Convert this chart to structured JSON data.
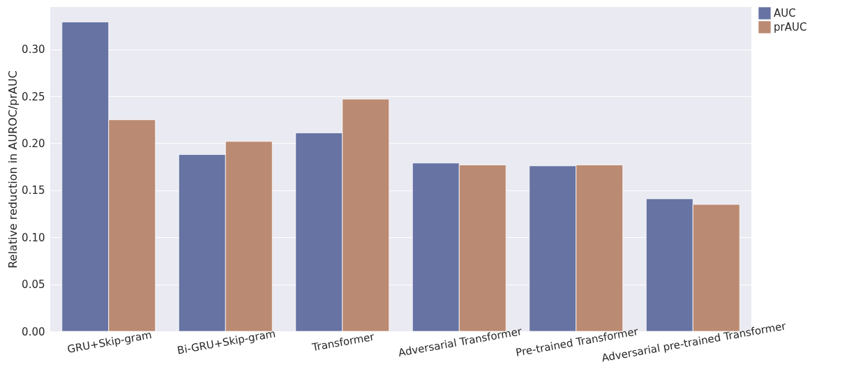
{
  "chart_data": {
    "type": "bar",
    "ylabel": "Relative reduction in AUROC/prAUC",
    "categories": [
      "GRU+Skip-gram",
      "Bi-GRU+Skip-gram",
      "Transformer",
      "Adversarial Transformer",
      "Pre-trained Transformer",
      "Adversarial pre-trained Transformer"
    ],
    "series": [
      {
        "name": "AUC",
        "color": "#6673a3",
        "values": [
          0.329,
          0.188,
          0.211,
          0.179,
          0.176,
          0.141
        ]
      },
      {
        "name": "prAUC",
        "color": "#bb8a72",
        "values": [
          0.225,
          0.202,
          0.247,
          0.177,
          0.177,
          0.135
        ]
      }
    ],
    "ylim": [
      0,
      0.345
    ],
    "yticks": [
      {
        "value": 0,
        "label": "0.00"
      },
      {
        "value": 0.05,
        "label": "0.05"
      },
      {
        "value": 0.1,
        "label": "0.10"
      },
      {
        "value": 0.15,
        "label": "0.15"
      },
      {
        "value": 0.2,
        "label": "0.20"
      },
      {
        "value": 0.25,
        "label": "0.25"
      },
      {
        "value": 0.3,
        "label": "0.30"
      }
    ],
    "grid": "y",
    "legend": "right"
  }
}
